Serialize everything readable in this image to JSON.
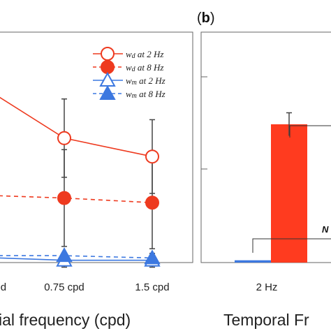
{
  "chart_data": [
    {
      "type": "line",
      "panel": "a",
      "categories": [
        "cpd",
        "0.75 cpd",
        "1.5 cpd"
      ],
      "xlabel": "ial frequency (cpd)",
      "ylim": [
        0,
        1
      ],
      "grid": false,
      "legend": "top-right",
      "series": [
        {
          "name": "wd at 2 Hz",
          "base": "w",
          "sub": "d",
          "rest": " at 2 Hz",
          "color": "#ee3a1f",
          "dash": "solid",
          "marker": "circle-open",
          "values": [
            0.72,
            0.54,
            0.46
          ],
          "err": [
            null,
            0.17,
            0.16
          ]
        },
        {
          "name": "wd at 8 Hz",
          "base": "w",
          "sub": "d",
          "rest": " at 8 Hz",
          "color": "#ee3a1f",
          "dash": "dashed",
          "marker": "circle-filled",
          "values": [
            0.29,
            0.28,
            0.26
          ],
          "err": [
            null,
            0.21,
            0.2
          ]
        },
        {
          "name": "wm at 2 Hz",
          "base": "w",
          "sub": "m",
          "rest": " at 2 Hz",
          "color": "#3c78e0",
          "dash": "solid",
          "marker": "triangle-open",
          "values": [
            0.02,
            0.01,
            0.01
          ],
          "err": [
            null,
            0.03,
            0.03
          ]
        },
        {
          "name": "wm at 8 Hz",
          "base": "w",
          "sub": "m",
          "rest": " at 8 Hz",
          "color": "#3c78e0",
          "dash": "dashed",
          "marker": "triangle-filled",
          "values": [
            0.03,
            0.03,
            0.02
          ],
          "err": [
            null,
            0.0,
            0.0
          ]
        }
      ]
    },
    {
      "type": "bar",
      "panel": "b",
      "panel_label_open": "(",
      "panel_label_letter": "b",
      "panel_label_close": ")",
      "categories": [
        "2 Hz"
      ],
      "xlabel": "Temporal Fr",
      "ylim": [
        0,
        1
      ],
      "series": [
        {
          "name": "",
          "color": "#3c78e0",
          "values": [
            0.01
          ],
          "offset": -0.13
        },
        {
          "name": "",
          "color": "#ff3b1f",
          "values": [
            0.6
          ],
          "offset": 0.13,
          "err": 0.05
        }
      ],
      "annotations": [
        {
          "text": "N"
        }
      ]
    }
  ]
}
